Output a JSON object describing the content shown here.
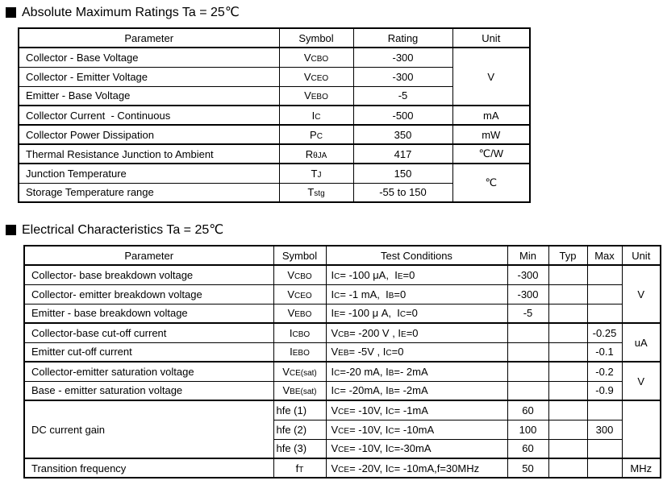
{
  "abs_max": {
    "title": "Absolute Maximum Ratings Ta = 25℃",
    "headers": {
      "parameter": "Parameter",
      "symbol": "Symbol",
      "rating": "Rating",
      "unit": "Unit"
    },
    "rows": [
      {
        "parameter": "Collector - Base Voltage",
        "symbol": "V~CBO~",
        "rating": "-300"
      },
      {
        "parameter": "Collector - Emitter Voltage",
        "symbol": "V~CEO~",
        "rating": "-300"
      },
      {
        "parameter": "Emitter - Base Voltage",
        "symbol": "V~EBO~",
        "rating": "-5"
      },
      {
        "parameter": "Collector Current  - Continuous",
        "symbol": "I~C~",
        "rating": "-500"
      },
      {
        "parameter": "Collector Power Dissipation",
        "symbol": "P~C~",
        "rating": "350"
      },
      {
        "parameter": "Thermal Resistance Junction to Ambient",
        "symbol": "R~θJA~",
        "rating": "417"
      },
      {
        "parameter": "Junction Temperature",
        "symbol": "T~J~",
        "rating": "150"
      },
      {
        "parameter": "Storage Temperature range",
        "symbol": "T~stg~",
        "rating": "-55 to 150"
      }
    ],
    "units": {
      "v": "V",
      "ma": "mA",
      "mw": "mW",
      "cw": "℃/W",
      "c": "℃"
    }
  },
  "elec": {
    "title": "Electrical Characteristics Ta = 25℃",
    "headers": {
      "parameter": "Parameter",
      "symbol": "Symbol",
      "test": "Test Conditions",
      "min": "Min",
      "typ": "Typ",
      "max": "Max",
      "unit": "Unit"
    },
    "rows": [
      {
        "parameter": "Collector- base breakdown voltage",
        "symbol": "V~CBO~",
        "test": "I~C~= -100 μA,  I~E~=0",
        "min": "-300",
        "typ": "",
        "max": ""
      },
      {
        "parameter": "Collector- emitter breakdown voltage",
        "symbol": "V~CEO~",
        "test": "I~C~= -1 mA,  I~B~=0",
        "min": "-300",
        "typ": "",
        "max": ""
      },
      {
        "parameter": "Emitter - base breakdown voltage",
        "symbol": "V~EBO~",
        "test": "I~E~= -100 μ A,  I~C~=0",
        "min": "-5",
        "typ": "",
        "max": ""
      },
      {
        "parameter": "Collector-base cut-off current",
        "symbol": "I~CBO~",
        "test": "V~CB~= -200 V , I~E~=0",
        "min": "",
        "typ": "",
        "max": "-0.25"
      },
      {
        "parameter": "Emitter cut-off current",
        "symbol": "I~EBO~",
        "test": "V~EB~= -5V , I~C~=0",
        "min": "",
        "typ": "",
        "max": "-0.1"
      },
      {
        "parameter": "Collector-emitter saturation voltage",
        "symbol": "V~CE(sat)~",
        "test": "I~C~=-20 mA, I~B~=- 2mA",
        "min": "",
        "typ": "",
        "max": "-0.2"
      },
      {
        "parameter": "Base - emitter saturation voltage",
        "symbol": "V~BE(sat)~",
        "test": "I~C~= -20mA, I~B~= -2mA",
        "min": "",
        "typ": "",
        "max": "-0.9"
      },
      {
        "parameter": "DC current gain",
        "symbol": "hfe (1)",
        "test": "V~CE~= -10V, I~C~= -1mA",
        "min": "60",
        "typ": "",
        "max": ""
      },
      {
        "parameter": "",
        "symbol": "hfe (2)",
        "test": "V~CE~= -10V, I~C~= -10mA",
        "min": "100",
        "typ": "",
        "max": "300"
      },
      {
        "parameter": "",
        "symbol": "hfe (3)",
        "test": "V~CE~= -10V, I~C~=-30mA",
        "min": "60",
        "typ": "",
        "max": ""
      },
      {
        "parameter": "Transition frequency",
        "symbol": "f~T~",
        "test": "V~CE~= -20V, I~C~= -10mA,f=30MHz",
        "min": "50",
        "typ": "",
        "max": ""
      }
    ],
    "units": {
      "v_breakdown": "V",
      "ua": "uA",
      "v_sat": "V",
      "hfe_blank": "",
      "mhz": "MHz"
    }
  }
}
